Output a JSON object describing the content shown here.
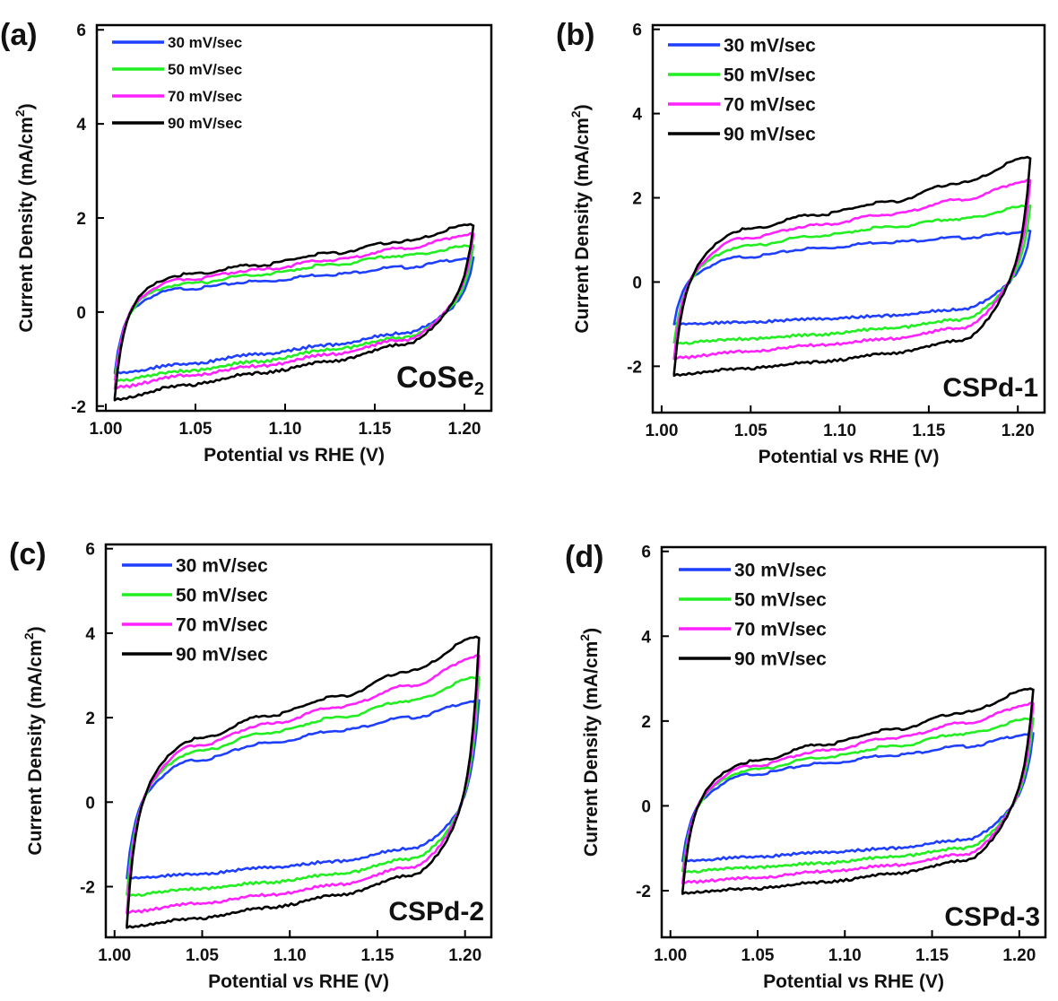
{
  "figure": "CV",
  "chart_data": [
    {
      "type": "line",
      "panel_label": "(a)",
      "sample_label": "CoSe",
      "sample_subscript": "2",
      "xlabel": "Potential vs RHE (V)",
      "ylabel": "Current Density (mA/cm",
      "ylabel_sup": "2",
      "ylabel_close": ")",
      "xlim": [
        0.995,
        1.215
      ],
      "ylim": [
        -2.1,
        6.1
      ],
      "xticks": [
        1.0,
        1.05,
        1.1,
        1.15,
        1.2
      ],
      "xtick_labels": [
        "1.00",
        "1.05",
        "1.10",
        "1.15",
        "1.20"
      ],
      "yticks": [
        -2,
        0,
        2,
        4,
        6
      ],
      "ytick_labels": [
        "-2",
        "0",
        "2",
        "4",
        "6"
      ],
      "legend_position": "top-left",
      "series": [
        {
          "name": "30 mV/sec",
          "color": "#1f3fff",
          "x_range": [
            1.005,
            1.205
          ],
          "anodic": [
            0.2,
            0.5,
            0.65,
            0.8,
            0.95,
            1.15
          ],
          "cathodic": [
            -1.3,
            -1.1,
            -0.9,
            -0.7,
            -0.45,
            0.1
          ]
        },
        {
          "name": "50 mV/sec",
          "color": "#22ee22",
          "x_range": [
            1.005,
            1.205
          ],
          "anodic": [
            0.25,
            0.6,
            0.8,
            1.0,
            1.2,
            1.4
          ],
          "cathodic": [
            -1.45,
            -1.25,
            -1.05,
            -0.8,
            -0.55,
            0.15
          ]
        },
        {
          "name": "70 mV/sec",
          "color": "#ff22ff",
          "x_range": [
            1.005,
            1.205
          ],
          "anodic": [
            0.3,
            0.7,
            0.9,
            1.1,
            1.35,
            1.65
          ],
          "cathodic": [
            -1.6,
            -1.35,
            -1.15,
            -0.9,
            -0.6,
            0.2
          ]
        },
        {
          "name": "90 mV/sec",
          "color": "#000000",
          "x_range": [
            1.005,
            1.205
          ],
          "anodic": [
            0.35,
            0.8,
            1.0,
            1.25,
            1.5,
            1.85
          ],
          "cathodic": [
            -1.85,
            -1.55,
            -1.3,
            -1.05,
            -0.7,
            0.2
          ]
        }
      ]
    },
    {
      "type": "line",
      "panel_label": "(b)",
      "sample_label": "CSPd-1",
      "sample_subscript": "",
      "xlabel": "Potential vs RHE (V)",
      "ylabel": "Current Density (mA/cm",
      "ylabel_sup": "2",
      "ylabel_close": ")",
      "xlim": [
        0.995,
        1.215
      ],
      "ylim": [
        -3.1,
        6.1
      ],
      "xticks": [
        1.0,
        1.05,
        1.1,
        1.15,
        1.2
      ],
      "xtick_labels": [
        "1.00",
        "1.05",
        "1.10",
        "1.15",
        "1.20"
      ],
      "yticks": [
        -2,
        0,
        2,
        4,
        6
      ],
      "ytick_labels": [
        "-2",
        "0",
        "2",
        "4",
        "6"
      ],
      "legend_position": "top-left",
      "series": [
        {
          "name": "30 mV/sec",
          "color": "#1f3fff",
          "x_range": [
            1.007,
            1.207
          ],
          "anodic": [
            0.2,
            0.6,
            0.8,
            0.95,
            1.05,
            1.2
          ],
          "cathodic": [
            -1.0,
            -0.95,
            -0.88,
            -0.8,
            -0.65,
            0.0
          ]
        },
        {
          "name": "50 mV/sec",
          "color": "#22ee22",
          "x_range": [
            1.007,
            1.207
          ],
          "anodic": [
            0.25,
            0.85,
            1.1,
            1.3,
            1.5,
            1.8
          ],
          "cathodic": [
            -1.45,
            -1.35,
            -1.25,
            -1.1,
            -0.9,
            0.0
          ]
        },
        {
          "name": "70 mV/sec",
          "color": "#ff22ff",
          "x_range": [
            1.007,
            1.207
          ],
          "anodic": [
            0.3,
            1.05,
            1.35,
            1.6,
            1.95,
            2.4
          ],
          "cathodic": [
            -1.8,
            -1.65,
            -1.5,
            -1.35,
            -1.1,
            0.0
          ]
        },
        {
          "name": "90 mV/sec",
          "color": "#000000",
          "x_range": [
            1.007,
            1.207
          ],
          "anodic": [
            0.35,
            1.25,
            1.6,
            1.9,
            2.35,
            2.95
          ],
          "cathodic": [
            -2.2,
            -2.05,
            -1.9,
            -1.7,
            -1.4,
            0.0
          ]
        }
      ]
    },
    {
      "type": "line",
      "panel_label": "(c)",
      "sample_label": "CSPd-2",
      "sample_subscript": "",
      "xlabel": "Potential vs RHE (V)",
      "ylabel": "Current Density (mA/cm",
      "ylabel_sup": "2",
      "ylabel_close": ")",
      "xlim": [
        0.995,
        1.215
      ],
      "ylim": [
        -3.2,
        6.1
      ],
      "xticks": [
        1.0,
        1.05,
        1.1,
        1.15,
        1.2
      ],
      "xtick_labels": [
        "1.00",
        "1.05",
        "1.10",
        "1.15",
        "1.20"
      ],
      "yticks": [
        -2,
        0,
        2,
        4,
        6
      ],
      "ytick_labels": [
        "-2",
        "0",
        "2",
        "4",
        "6"
      ],
      "legend_position": "top-left",
      "series": [
        {
          "name": "30 mV/sec",
          "color": "#1f3fff",
          "x_range": [
            1.007,
            1.208
          ],
          "anodic": [
            0.3,
            1.0,
            1.4,
            1.7,
            2.0,
            2.4
          ],
          "cathodic": [
            -1.8,
            -1.7,
            -1.55,
            -1.4,
            -1.1,
            -0.3
          ]
        },
        {
          "name": "50 mV/sec",
          "color": "#22ee22",
          "x_range": [
            1.007,
            1.208
          ],
          "anodic": [
            0.35,
            1.2,
            1.65,
            2.0,
            2.4,
            2.95
          ],
          "cathodic": [
            -2.2,
            -2.05,
            -1.9,
            -1.7,
            -1.35,
            -0.35
          ]
        },
        {
          "name": "70 mV/sec",
          "color": "#ff22ff",
          "x_range": [
            1.007,
            1.208
          ],
          "anodic": [
            0.4,
            1.35,
            1.85,
            2.25,
            2.75,
            3.45
          ],
          "cathodic": [
            -2.6,
            -2.4,
            -2.2,
            -1.95,
            -1.55,
            -0.4
          ]
        },
        {
          "name": "90 mV/sec",
          "color": "#000000",
          "x_range": [
            1.007,
            1.208
          ],
          "anodic": [
            0.45,
            1.5,
            2.05,
            2.5,
            3.1,
            3.9
          ],
          "cathodic": [
            -2.95,
            -2.75,
            -2.5,
            -2.2,
            -1.75,
            -0.45
          ]
        }
      ]
    },
    {
      "type": "line",
      "panel_label": "(d)",
      "sample_label": "CSPd-3",
      "sample_subscript": "",
      "xlabel": "Potential vs RHE (V)",
      "ylabel": "Current Density (mA/cm",
      "ylabel_sup": "2",
      "ylabel_close": ")",
      "xlim": [
        0.995,
        1.215
      ],
      "ylim": [
        -3.1,
        6.1
      ],
      "xticks": [
        1.0,
        1.05,
        1.1,
        1.15,
        1.2
      ],
      "xtick_labels": [
        "1.00",
        "1.05",
        "1.10",
        "1.15",
        "1.20"
      ],
      "yticks": [
        -2,
        0,
        2,
        4,
        6
      ],
      "ytick_labels": [
        "-2",
        "0",
        "2",
        "4",
        "6"
      ],
      "legend_position": "top-left",
      "series": [
        {
          "name": "30 mV/sec",
          "color": "#1f3fff",
          "x_range": [
            1.007,
            1.208
          ],
          "anodic": [
            0.2,
            0.75,
            1.0,
            1.2,
            1.4,
            1.7
          ],
          "cathodic": [
            -1.3,
            -1.2,
            -1.1,
            -1.0,
            -0.8,
            0.0
          ]
        },
        {
          "name": "50 mV/sec",
          "color": "#22ee22",
          "x_range": [
            1.007,
            1.208
          ],
          "anodic": [
            0.25,
            0.85,
            1.15,
            1.4,
            1.7,
            2.05
          ],
          "cathodic": [
            -1.55,
            -1.45,
            -1.35,
            -1.2,
            -1.0,
            0.0
          ]
        },
        {
          "name": "70 mV/sec",
          "color": "#ff22ff",
          "x_range": [
            1.007,
            1.208
          ],
          "anodic": [
            0.3,
            0.95,
            1.3,
            1.6,
            1.95,
            2.4
          ],
          "cathodic": [
            -1.8,
            -1.7,
            -1.55,
            -1.4,
            -1.15,
            0.0
          ]
        },
        {
          "name": "90 mV/sec",
          "color": "#000000",
          "x_range": [
            1.007,
            1.208
          ],
          "anodic": [
            0.35,
            1.05,
            1.45,
            1.8,
            2.2,
            2.75
          ],
          "cathodic": [
            -2.05,
            -1.95,
            -1.8,
            -1.6,
            -1.3,
            0.0
          ]
        }
      ]
    }
  ]
}
